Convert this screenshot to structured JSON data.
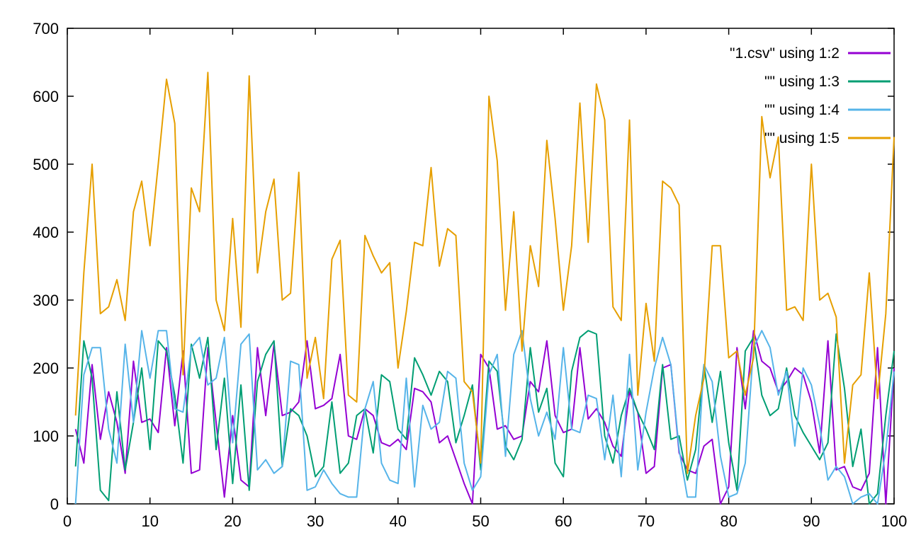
{
  "chart_data": {
    "type": "line",
    "title": "",
    "xlabel": "",
    "ylabel": "",
    "xlim": [
      0,
      100
    ],
    "ylim": [
      0,
      700
    ],
    "x_ticks": [
      0,
      10,
      20,
      30,
      40,
      50,
      60,
      70,
      80,
      90,
      100
    ],
    "y_ticks": [
      0,
      100,
      200,
      300,
      400,
      500,
      600,
      700
    ],
    "grid": false,
    "legend_position": "top-right-inside",
    "border_color": "#000000",
    "x": [
      1,
      2,
      3,
      4,
      5,
      6,
      7,
      8,
      9,
      10,
      11,
      12,
      13,
      14,
      15,
      16,
      17,
      18,
      19,
      20,
      21,
      22,
      23,
      24,
      25,
      26,
      27,
      28,
      29,
      30,
      31,
      32,
      33,
      34,
      35,
      36,
      37,
      38,
      39,
      40,
      41,
      42,
      43,
      44,
      45,
      46,
      47,
      48,
      49,
      50,
      51,
      52,
      53,
      54,
      55,
      56,
      57,
      58,
      59,
      60,
      61,
      62,
      63,
      64,
      65,
      66,
      67,
      68,
      69,
      70,
      71,
      72,
      73,
      74,
      75,
      76,
      77,
      78,
      79,
      80,
      81,
      82,
      83,
      84,
      85,
      86,
      87,
      88,
      89,
      90,
      91,
      92,
      93,
      94,
      95,
      96,
      97,
      98,
      99,
      100
    ],
    "series": [
      {
        "name": "\"1.csv\" using 1:2",
        "color": "#9400d3",
        "values": [
          110,
          60,
          205,
          95,
          165,
          120,
          45,
          210,
          120,
          125,
          105,
          230,
          115,
          225,
          45,
          50,
          230,
          120,
          10,
          130,
          35,
          25,
          230,
          130,
          235,
          130,
          135,
          150,
          240,
          140,
          145,
          155,
          220,
          100,
          95,
          140,
          130,
          90,
          85,
          95,
          80,
          170,
          165,
          150,
          90,
          100,
          65,
          30,
          0,
          220,
          200,
          110,
          115,
          95,
          100,
          180,
          165,
          240,
          130,
          105,
          110,
          230,
          125,
          140,
          120,
          85,
          70,
          165,
          135,
          45,
          55,
          200,
          205,
          75,
          50,
          45,
          85,
          95,
          0,
          25,
          230,
          140,
          255,
          210,
          200,
          165,
          180,
          200,
          190,
          150,
          75,
          240,
          50,
          55,
          25,
          20,
          45,
          230,
          0,
          200
        ]
      },
      {
        "name": "\"\" using 1:3",
        "color": "#009e73",
        "values": [
          55,
          240,
          185,
          20,
          5,
          165,
          50,
          120,
          200,
          80,
          240,
          225,
          160,
          60,
          235,
          185,
          245,
          80,
          185,
          30,
          175,
          20,
          180,
          220,
          240,
          55,
          140,
          130,
          100,
          40,
          55,
          150,
          45,
          60,
          130,
          140,
          75,
          190,
          180,
          110,
          95,
          215,
          190,
          160,
          195,
          180,
          90,
          130,
          175,
          50,
          210,
          195,
          85,
          65,
          95,
          230,
          135,
          170,
          60,
          40,
          195,
          245,
          255,
          250,
          100,
          60,
          130,
          170,
          135,
          110,
          80,
          205,
          95,
          100,
          35,
          80,
          205,
          120,
          195,
          90,
          20,
          225,
          245,
          160,
          130,
          140,
          200,
          130,
          105,
          85,
          65,
          90,
          250,
          170,
          55,
          110,
          0,
          15,
          130,
          225
        ]
      },
      {
        "name": "\"\" using 1:4",
        "color": "#56b4e9",
        "values": [
          0,
          190,
          230,
          230,
          110,
          60,
          235,
          120,
          255,
          185,
          255,
          255,
          140,
          135,
          230,
          245,
          175,
          185,
          245,
          90,
          235,
          250,
          50,
          65,
          45,
          55,
          210,
          205,
          20,
          25,
          50,
          30,
          15,
          10,
          10,
          140,
          180,
          60,
          35,
          30,
          185,
          25,
          145,
          110,
          120,
          195,
          185,
          60,
          20,
          40,
          190,
          220,
          70,
          220,
          255,
          155,
          100,
          135,
          95,
          230,
          110,
          105,
          160,
          155,
          65,
          160,
          40,
          220,
          50,
          135,
          200,
          245,
          205,
          80,
          10,
          10,
          205,
          180,
          70,
          10,
          15,
          60,
          230,
          255,
          230,
          160,
          195,
          85,
          200,
          175,
          115,
          35,
          55,
          40,
          0,
          10,
          15,
          0,
          80,
          195
        ]
      },
      {
        "name": "\"\" using 1:5",
        "color": "#e69f00",
        "values": [
          130,
          340,
          500,
          280,
          290,
          330,
          270,
          430,
          475,
          380,
          500,
          625,
          560,
          190,
          465,
          430,
          635,
          300,
          255,
          420,
          260,
          630,
          340,
          430,
          478,
          300,
          310,
          488,
          185,
          245,
          155,
          360,
          388,
          160,
          150,
          395,
          365,
          340,
          355,
          200,
          283,
          385,
          380,
          495,
          350,
          405,
          395,
          180,
          165,
          60,
          600,
          505,
          285,
          430,
          225,
          380,
          320,
          535,
          420,
          285,
          380,
          590,
          385,
          618,
          565,
          290,
          270,
          565,
          160,
          295,
          210,
          475,
          465,
          440,
          45,
          130,
          185,
          380,
          380,
          215,
          225,
          160,
          215,
          570,
          480,
          540,
          285,
          290,
          270,
          500,
          300,
          310,
          275,
          60,
          175,
          190,
          340,
          155,
          280,
          540
        ]
      }
    ]
  }
}
